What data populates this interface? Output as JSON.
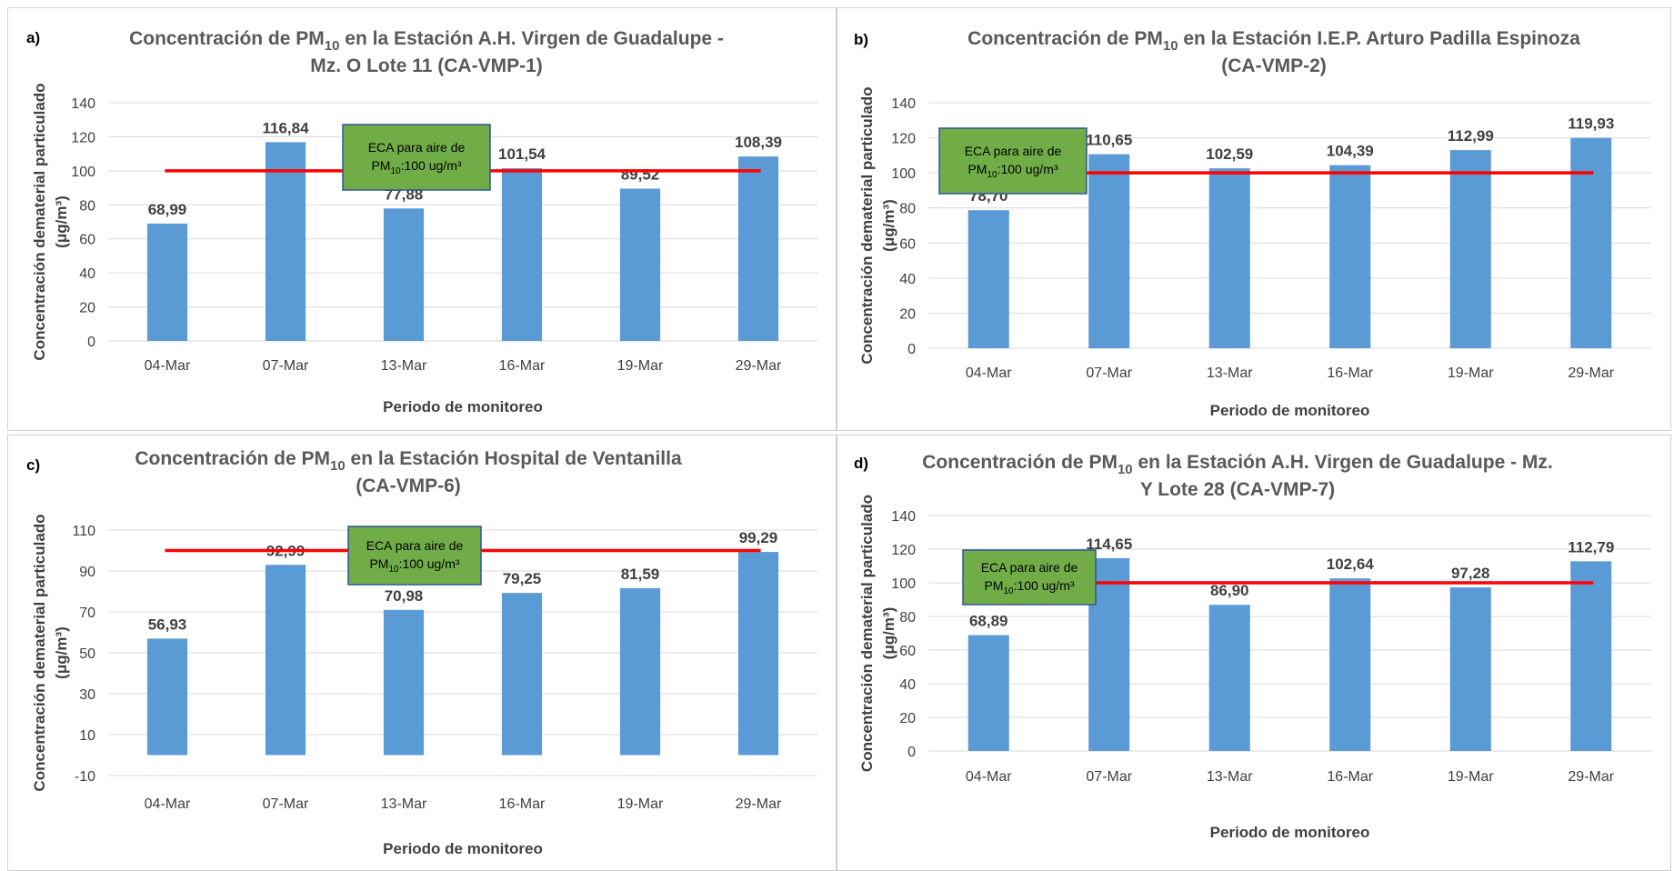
{
  "chart_data": [
    {
      "type": "bar",
      "panel_label": "a)",
      "title_main": "Concentración  de PM",
      "title_sub": "10",
      "title_rest": " en la Estación A.H. Virgen de Guadalupe -",
      "title_line2": "Mz. O Lote 11 (CA-VMP-1)",
      "ylabel_line1": "Concentración dematerial particulado",
      "ylabel_line2": "(μg/m³)",
      "xlabel": "Periodo de monitoreo",
      "categories": [
        "04-Mar",
        "07-Mar",
        "13-Mar",
        "16-Mar",
        "19-Mar",
        "29-Mar"
      ],
      "values": [
        68.99,
        116.84,
        77.88,
        101.54,
        89.52,
        108.39
      ],
      "value_labels": [
        "68,99",
        "116,84",
        "77,88",
        "101,54",
        "89,52",
        "108,39"
      ],
      "ylim": [
        0,
        140
      ],
      "yticks": [
        0,
        20,
        40,
        60,
        80,
        100,
        120,
        140
      ],
      "reference": {
        "value": 100,
        "label_line1": "ECA para aire de",
        "label_line2_a": "PM",
        "label_line2_sub": "10",
        "label_line2_b": ":100 ug/m³"
      }
    },
    {
      "type": "bar",
      "panel_label": "b)",
      "title_main": "Concentración  de PM",
      "title_sub": "10",
      "title_rest": " en la Estación I.E.P. Arturo Padilla Espinoza",
      "title_line2": "(CA-VMP-2)",
      "ylabel_line1": "Concentración dematerial particulado",
      "ylabel_line2": "(μg/m³)",
      "xlabel": "Periodo de monitoreo",
      "categories": [
        "04-Mar",
        "07-Mar",
        "13-Mar",
        "16-Mar",
        "19-Mar",
        "29-Mar"
      ],
      "values": [
        78.7,
        110.65,
        102.59,
        104.39,
        112.99,
        119.93
      ],
      "value_labels": [
        "78,70",
        "110,65",
        "102,59",
        "104,39",
        "112,99",
        "119,93"
      ],
      "ylim": [
        0,
        140
      ],
      "yticks": [
        0,
        20,
        40,
        60,
        80,
        100,
        120,
        140
      ],
      "reference": {
        "value": 100,
        "label_line1": "ECA para aire de",
        "label_line2_a": "PM",
        "label_line2_sub": "10",
        "label_line2_b": ":100 ug/m³"
      }
    },
    {
      "type": "bar",
      "panel_label": "c)",
      "title_main": "Concentración  de PM",
      "title_sub": "10",
      "title_rest": " en la Estación Hospital de Ventanilla",
      "title_line2": "(CA-VMP-6)",
      "ylabel_line1": "Concentración dematerial particulado",
      "ylabel_line2": "(μg/m³)",
      "xlabel": "Periodo de monitoreo",
      "categories": [
        "04-Mar",
        "07-Mar",
        "13-Mar",
        "16-Mar",
        "19-Mar",
        "29-Mar"
      ],
      "values": [
        56.93,
        92.99,
        70.98,
        79.25,
        81.59,
        99.29
      ],
      "value_labels": [
        "56,93",
        "92,99",
        "70,98",
        "79,25",
        "81,59",
        "99,29"
      ],
      "ylim": [
        -10,
        110
      ],
      "yticks": [
        -10,
        10,
        30,
        50,
        70,
        90,
        110
      ],
      "reference": {
        "value": 100,
        "label_line1": "ECA para aire de",
        "label_line2_a": "PM",
        "label_line2_sub": "10",
        "label_line2_b": ":100 ug/m³"
      }
    },
    {
      "type": "bar",
      "panel_label": "d)",
      "title_main": "Concentración  de PM",
      "title_sub": "10",
      "title_rest": " en la Estación A.H. Virgen de Guadalupe - Mz.",
      "title_line2": "Y Lote 28 (CA-VMP-7)",
      "ylabel_line1": "Concentración dematerial particulado",
      "ylabel_line2": "(μg/m³)",
      "xlabel": "Periodo de monitoreo",
      "categories": [
        "04-Mar",
        "07-Mar",
        "13-Mar",
        "16-Mar",
        "19-Mar",
        "29-Mar"
      ],
      "values": [
        68.89,
        114.65,
        86.9,
        102.64,
        97.28,
        112.79
      ],
      "value_labels": [
        "68,89",
        "114,65",
        "86,90",
        "102,64",
        "97,28",
        "112,79"
      ],
      "ylim": [
        0,
        140
      ],
      "yticks": [
        0,
        20,
        40,
        60,
        80,
        100,
        120,
        140
      ],
      "reference": {
        "value": 100,
        "label_line1": "ECA para aire de",
        "label_line2_a": "PM",
        "label_line2_sub": "10",
        "label_line2_b": ":100 ug/m³"
      }
    }
  ],
  "colors": {
    "bar": "#5b9bd5",
    "reference_line": "#ff0000",
    "callout_fill": "#70ad47",
    "callout_border": "#2f5597",
    "grid": "#d9d9d9",
    "text": "#404040",
    "title_text": "#595959"
  }
}
